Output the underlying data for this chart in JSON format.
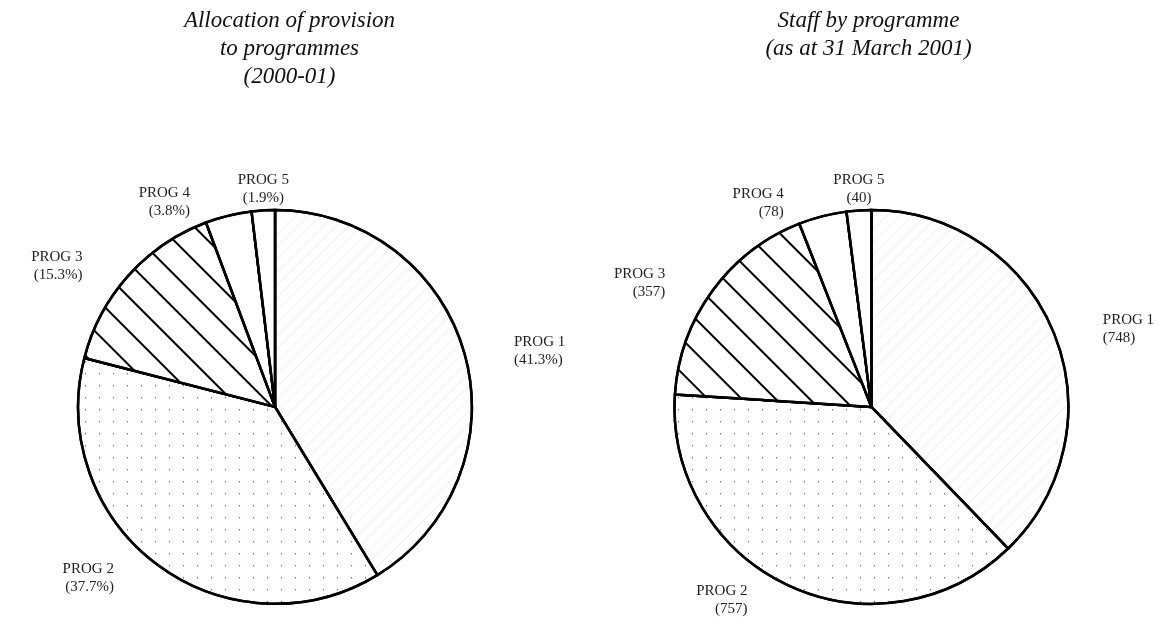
{
  "chart_data": [
    {
      "type": "pie",
      "title": "Allocation of provision\nto programmes\n(2000-01)",
      "categories": [
        "PROG 1",
        "PROG 2",
        "PROG 3",
        "PROG 4",
        "PROG 5"
      ],
      "values": [
        41.3,
        37.7,
        15.3,
        3.8,
        1.9
      ],
      "value_labels": [
        "(41.3%)",
        "(37.7%)",
        "(15.3%)",
        "(3.8%)",
        "(1.9%)"
      ],
      "colors": [
        "#ffffff",
        "#ffffff",
        "#ffffff",
        "#ffffff",
        "#ffffff"
      ]
    },
    {
      "type": "pie",
      "title": "Staff by programme\n(as at 31 March 2001)",
      "categories": [
        "PROG 1",
        "PROG 2",
        "PROG 3",
        "PROG 4",
        "PROG 5"
      ],
      "values": [
        748,
        757,
        357,
        78,
        40
      ],
      "value_labels": [
        "(748)",
        "(757)",
        "(357)",
        "(78)",
        "(40)"
      ],
      "colors": [
        "#ffffff",
        "#ffffff",
        "#ffffff",
        "#ffffff",
        "#ffffff"
      ]
    }
  ]
}
